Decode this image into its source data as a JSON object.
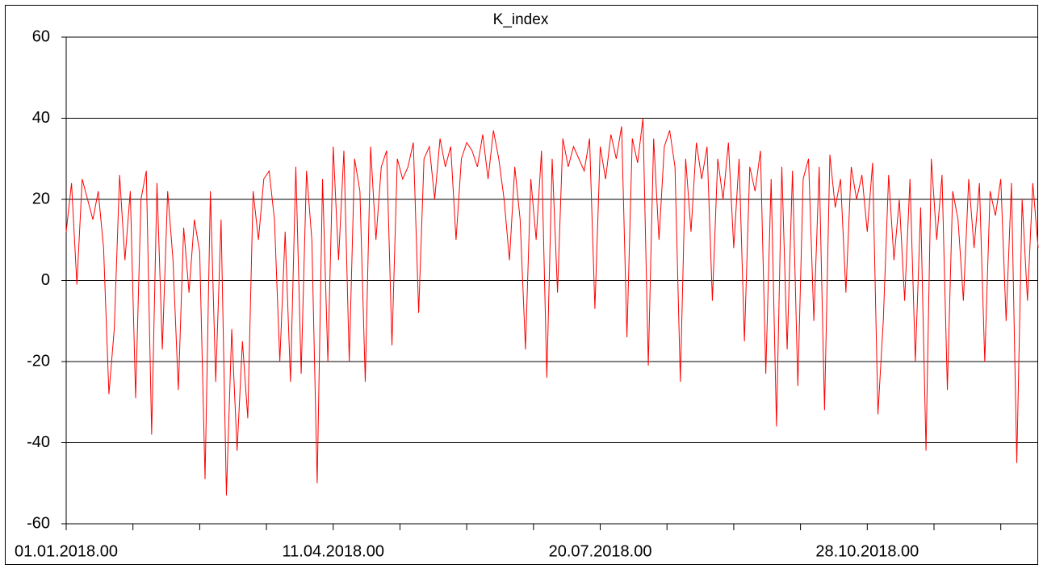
{
  "chart_data": {
    "type": "line",
    "title": "K_index",
    "color": "#ff0000",
    "grid": true,
    "x": [
      0,
      2,
      4,
      6,
      8,
      10,
      12,
      14,
      16,
      18,
      20,
      22,
      24,
      26,
      28,
      30,
      32,
      34,
      36,
      38,
      40,
      42,
      44,
      46,
      48,
      50,
      52,
      54,
      56,
      58,
      60,
      62,
      64,
      66,
      68,
      70,
      72,
      74,
      76,
      78,
      80,
      82,
      84,
      86,
      88,
      90,
      92,
      94,
      96,
      98,
      100,
      102,
      104,
      106,
      108,
      110,
      112,
      114,
      116,
      118,
      120,
      122,
      124,
      126,
      128,
      130,
      132,
      134,
      136,
      138,
      140,
      142,
      144,
      146,
      148,
      150,
      152,
      154,
      156,
      158,
      160,
      162,
      164,
      166,
      168,
      170,
      172,
      174,
      176,
      178,
      180,
      182,
      184,
      186,
      188,
      190,
      192,
      194,
      196,
      198,
      200,
      202,
      204,
      206,
      208,
      210,
      212,
      214,
      216,
      218,
      220,
      222,
      224,
      226,
      228,
      230,
      232,
      234,
      236,
      238,
      240,
      242,
      244,
      246,
      248,
      250,
      252,
      254,
      256,
      258,
      260,
      262,
      264,
      266,
      268,
      270,
      272,
      274,
      276,
      278,
      280,
      282,
      284,
      286,
      288,
      290,
      292,
      294,
      296,
      298,
      300,
      302,
      304,
      306,
      308,
      310,
      312,
      314,
      316,
      318,
      320,
      322,
      324,
      326,
      328,
      330,
      332,
      334,
      336,
      338,
      340,
      342,
      344,
      346,
      348,
      350,
      352,
      354,
      356,
      358,
      360,
      362,
      364
    ],
    "values": [
      12,
      24,
      -1,
      25,
      20,
      15,
      22,
      8,
      -28,
      -12,
      26,
      5,
      22,
      -29,
      20,
      27,
      -38,
      24,
      -17,
      22,
      5,
      -27,
      13,
      -3,
      15,
      7,
      -49,
      22,
      -25,
      15,
      -53,
      -12,
      -42,
      -15,
      -34,
      22,
      10,
      25,
      27,
      15,
      -20,
      12,
      -25,
      28,
      -23,
      27,
      10,
      -50,
      25,
      -20,
      33,
      5,
      32,
      -20,
      30,
      22,
      -25,
      33,
      10,
      28,
      32,
      -16,
      30,
      25,
      28,
      34,
      -8,
      30,
      33,
      20,
      35,
      28,
      33,
      10,
      30,
      34,
      32,
      28,
      36,
      25,
      37,
      30,
      20,
      5,
      28,
      15,
      -17,
      25,
      10,
      32,
      -24,
      30,
      -3,
      35,
      28,
      33,
      30,
      27,
      35,
      -7,
      33,
      25,
      36,
      30,
      38,
      -14,
      35,
      29,
      40,
      -21,
      35,
      10,
      33,
      37,
      28,
      -25,
      30,
      12,
      34,
      25,
      33,
      -5,
      30,
      20,
      34,
      8,
      30,
      -15,
      28,
      22,
      32,
      -23,
      25,
      -36,
      28,
      -17,
      27,
      -26,
      25,
      30,
      -10,
      28,
      -32,
      31,
      18,
      25,
      -3,
      28,
      20,
      26,
      12,
      29,
      -33,
      -10,
      26,
      5,
      20,
      -5,
      25,
      -20,
      18,
      -42,
      30,
      10,
      26,
      -27,
      22,
      15,
      -5,
      25,
      8,
      24,
      -20,
      22,
      16,
      25,
      -10,
      24,
      -45,
      20,
      -5,
      24,
      8
    ],
    "xlim": [
      0,
      364
    ],
    "xticks": [
      {
        "value": 0,
        "label": "01.01.2018.00"
      },
      {
        "value": 100,
        "label": "11.04.2018.00"
      },
      {
        "value": 200,
        "label": "20.07.2018.00"
      },
      {
        "value": 300,
        "label": "28.10.2018.00"
      }
    ],
    "xminorticks": [
      25,
      50,
      75,
      125,
      150,
      175,
      225,
      250,
      275,
      325,
      350
    ],
    "ylim": [
      -60,
      60
    ],
    "yticks": [
      -60,
      -40,
      -20,
      0,
      20,
      40,
      60
    ]
  }
}
